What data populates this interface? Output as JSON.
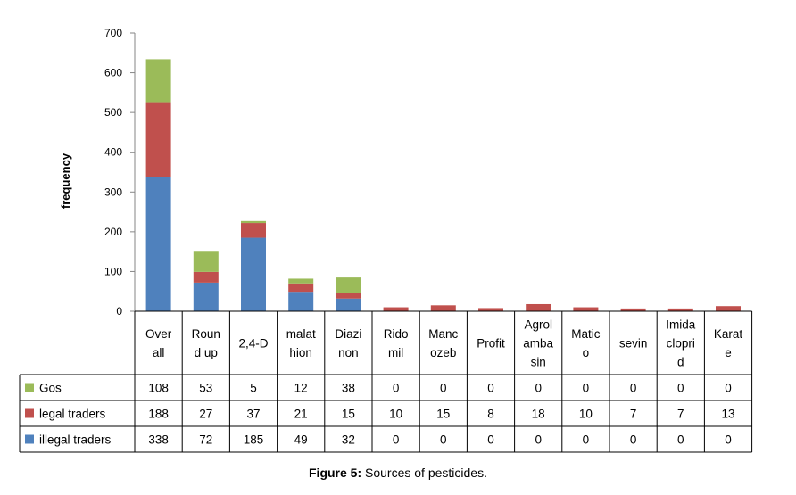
{
  "chart_data": {
    "type": "bar",
    "stacked": true,
    "ylabel": "frequency",
    "ylim": [
      0,
      700
    ],
    "yticks": [
      "0",
      "100",
      "200",
      "300",
      "400",
      "500",
      "600",
      "700"
    ],
    "grid": false,
    "legend": "data table",
    "categories": [
      [
        "Over",
        "all"
      ],
      [
        "Roun",
        "d up"
      ],
      [
        "2,4-D"
      ],
      [
        "malat",
        "hion"
      ],
      [
        "Diazi",
        "non"
      ],
      [
        "Rido",
        "mil"
      ],
      [
        "Manc",
        "ozeb"
      ],
      [
        "Profit"
      ],
      [
        "Agrol",
        "amba",
        "sin"
      ],
      [
        "Matic",
        "o"
      ],
      [
        "sevin"
      ],
      [
        "Imida",
        "clopri",
        "d"
      ],
      [
        "Karat",
        "e"
      ]
    ],
    "series": [
      {
        "name": "Gos",
        "color": "#9BBB59",
        "values": [
          108,
          53,
          5,
          12,
          38,
          0,
          0,
          0,
          0,
          0,
          0,
          0,
          0
        ]
      },
      {
        "name": "legal traders",
        "color": "#C0504D",
        "values": [
          188,
          27,
          37,
          21,
          15,
          10,
          15,
          8,
          18,
          10,
          7,
          7,
          13
        ]
      },
      {
        "name": "illegal traders",
        "color": "#4F81BD",
        "values": [
          338,
          72,
          185,
          49,
          32,
          0,
          0,
          0,
          0,
          0,
          0,
          0,
          0
        ]
      }
    ]
  },
  "caption": {
    "label": "Figure 5:",
    "text": " Sources of pesticides."
  }
}
